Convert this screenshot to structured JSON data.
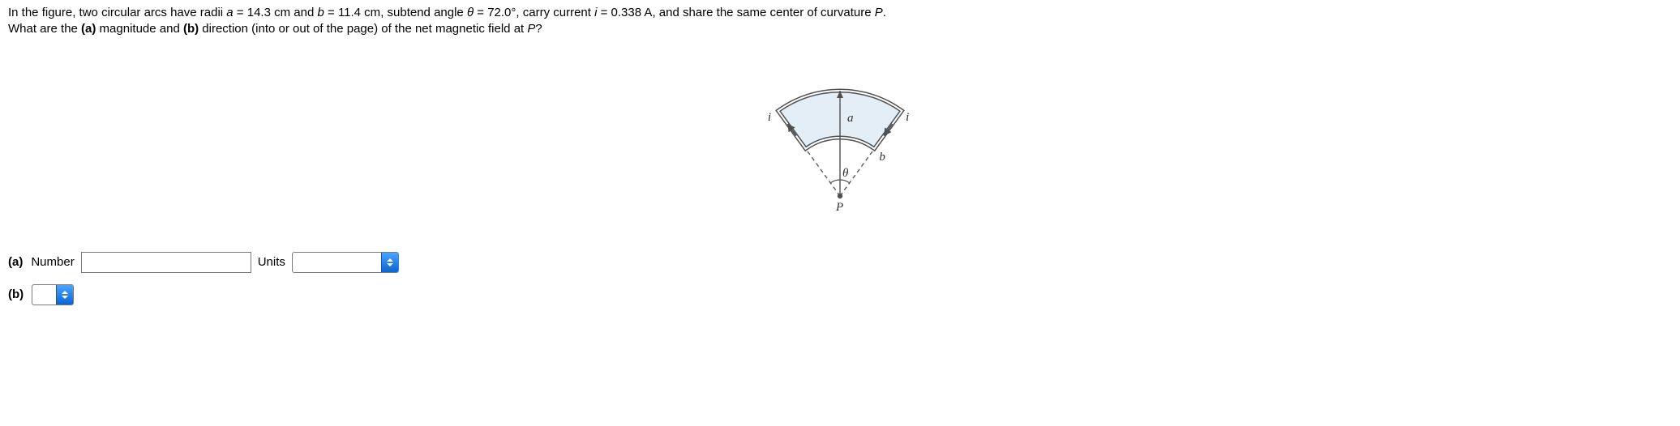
{
  "problem": {
    "line1_pre": "In the figure, two circular arcs have radii ",
    "a_var": "a",
    "eq1": " = ",
    "a_val": "14.3 cm",
    "and1": " and ",
    "b_var": "b",
    "eq2": " = ",
    "b_val": "11.4 cm",
    "subtend": ", subtend angle ",
    "theta_var": "θ",
    "eq3": " = ",
    "theta_val": "72.0°",
    "carry": ", carry current ",
    "i_var": "i",
    "eq4": " = ",
    "i_val": "0.338 A",
    "share": ", and share the same center of curvature ",
    "P_var": "P",
    "period": ".",
    "line2_pre": "What are the ",
    "part_a_bold": "(a)",
    "magnitude": " magnitude and ",
    "part_b_bold": "(b)",
    "direction": " direction (into or out of the page) of the net magnetic field at ",
    "P_var2": "P",
    "qmark": "?"
  },
  "figure": {
    "label_a": "a",
    "label_b": "b",
    "label_theta": "θ",
    "label_i_left": "i",
    "label_i_right": "i",
    "label_P": "P",
    "stroke_color": "#505050",
    "arc_fill": "#e3eef7",
    "arc_stroke_width": 2,
    "dash": "5,4"
  },
  "answers": {
    "a": {
      "label": "(a)",
      "number_label": "Number",
      "number_value": "",
      "units_label": "Units",
      "units_value": ""
    },
    "b": {
      "label": "(b)",
      "value": ""
    }
  }
}
